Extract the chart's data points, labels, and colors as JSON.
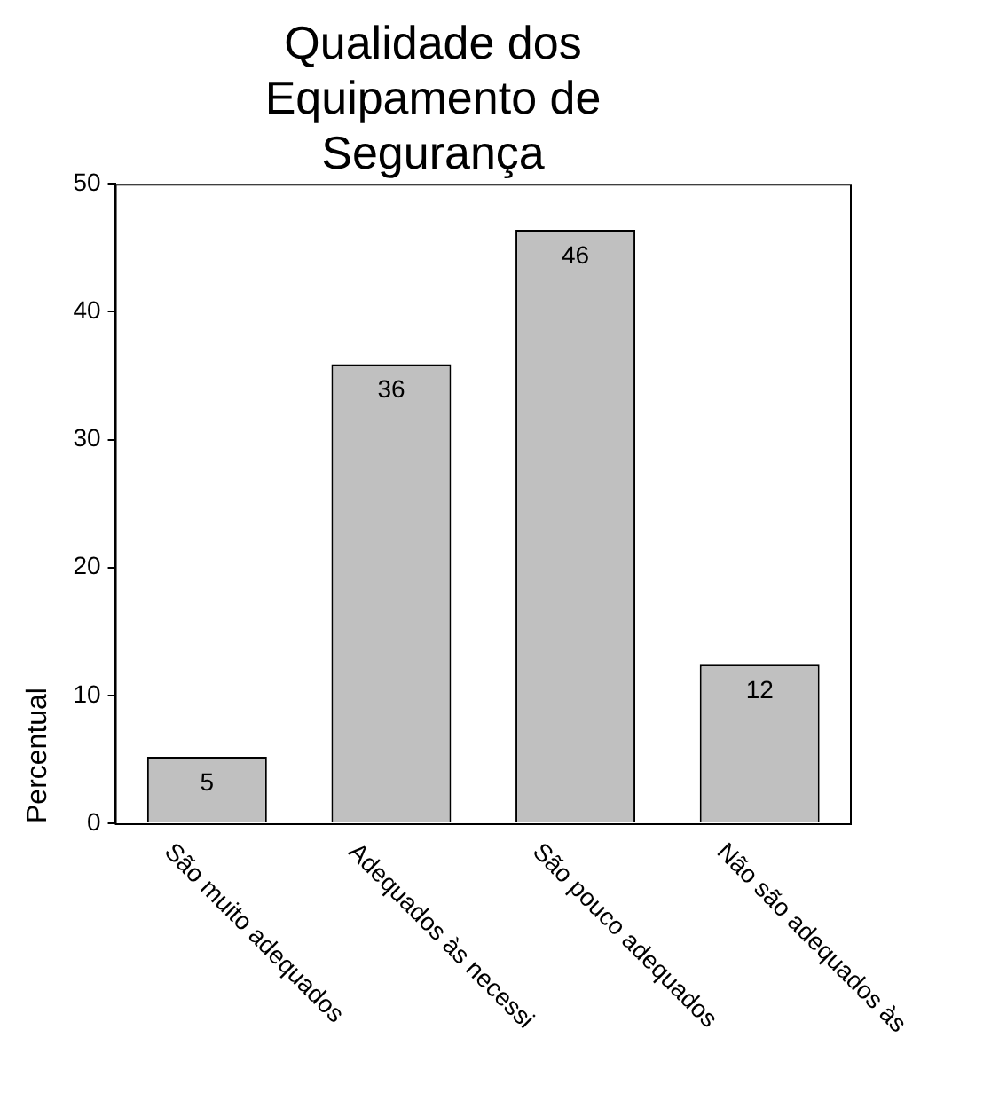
{
  "chart_data": {
    "type": "bar",
    "title": "Qualidade dos Equipamento de Segurança",
    "ylabel": "Percentual",
    "categories": [
      "São muito adequados",
      "Adequados às necessi",
      "São pouco adequados",
      "Não são adequados às"
    ],
    "values": [
      5.2,
      35.9,
      46.4,
      12.4
    ],
    "value_labels": [
      "5",
      "36",
      "46",
      "12"
    ],
    "color": "#c0c0c0",
    "ylim": [
      0,
      50
    ],
    "yticks": [
      0,
      10,
      20,
      30,
      40,
      50
    ],
    "grid": false,
    "legend": false
  }
}
